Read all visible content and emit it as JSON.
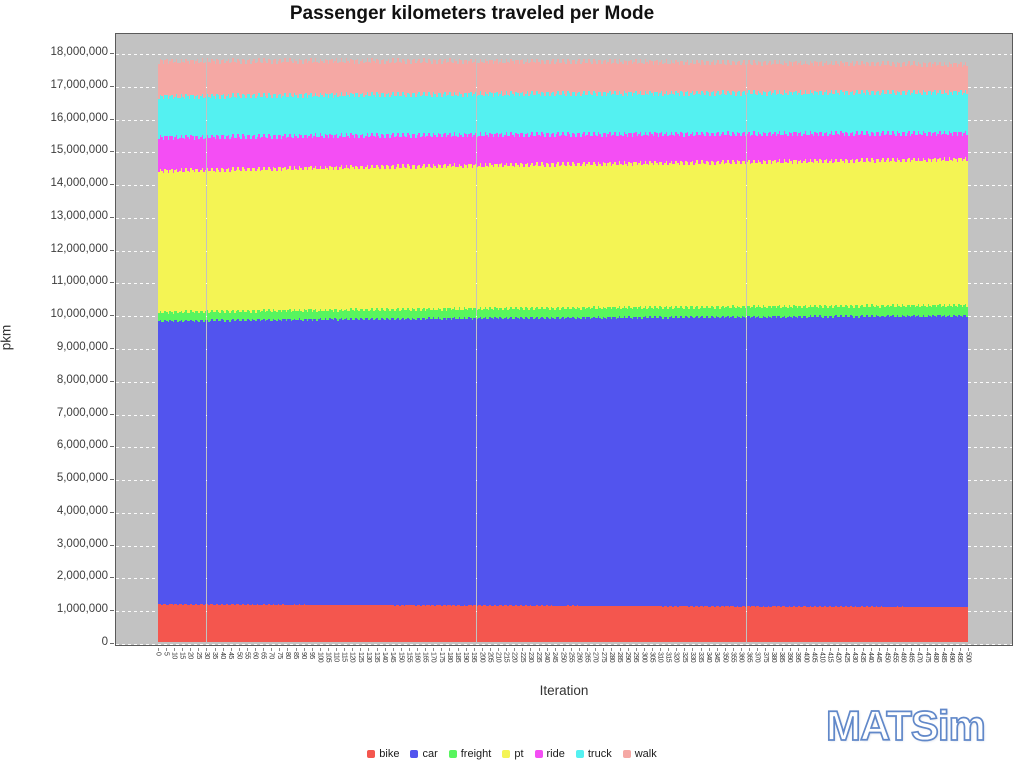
{
  "title": "Passenger kilometers traveled per Mode",
  "axes": {
    "ylabel": "pkm",
    "xlabel": "Iteration"
  },
  "watermark": "MATSim",
  "colors": {
    "plot_bg": "#c2c2c2",
    "plot_border": "#5a5a5a",
    "grid": "#ffffff",
    "tick_text": "#3d3d3d",
    "logo_stroke": "#6188c9"
  },
  "chart_data": {
    "type": "bar",
    "stacked": true,
    "title": "Passenger kilometers traveled per Mode",
    "xlabel": "Iteration",
    "ylabel": "pkm",
    "x_axis": {
      "start": 0,
      "end": 500,
      "bar_step": 1,
      "tick_label_step": 5
    },
    "y_axis": {
      "min": 0,
      "max": 18000000,
      "tick_step": 1000000,
      "plotted_top": 18600000
    },
    "grid": true,
    "legend_position": "bottom",
    "sample_iterations": [
      0,
      50,
      100,
      150,
      200,
      250,
      300,
      350,
      400,
      450,
      500
    ],
    "series": [
      {
        "name": "bike",
        "color": "#f4564e",
        "samples": [
          1150000,
          1141000,
          1133000,
          1124000,
          1116000,
          1104000,
          1096000,
          1087000,
          1080000,
          1074000,
          1068000
        ]
      },
      {
        "name": "car",
        "color": "#5254ee",
        "samples": [
          8640000,
          8676000,
          8708000,
          8736000,
          8762000,
          8786000,
          8806000,
          8826000,
          8846000,
          8864000,
          8880000
        ]
      },
      {
        "name": "freight",
        "color": "#58f55e",
        "samples": [
          270000,
          276000,
          281000,
          286000,
          291000,
          296000,
          301000,
          306000,
          311000,
          316000,
          320000
        ]
      },
      {
        "name": "pt",
        "color": "#f4f454",
        "samples": [
          4310000,
          4328000,
          4344000,
          4360000,
          4374000,
          4388000,
          4402000,
          4416000,
          4432000,
          4446000,
          4460000
        ]
      },
      {
        "name": "ride",
        "color": "#f44ef4",
        "samples": [
          1020000,
          998000,
          976000,
          954000,
          932000,
          912000,
          890000,
          866000,
          840000,
          814000,
          790000
        ]
      },
      {
        "name": "truck",
        "color": "#54f1f1",
        "samples": [
          1240000,
          1241000,
          1242000,
          1243000,
          1244000,
          1245000,
          1246000,
          1247000,
          1248000,
          1249000,
          1250000
        ]
      },
      {
        "name": "walk",
        "color": "#f5a8a4",
        "samples": [
          1090000,
          1066000,
          1044000,
          1022000,
          1000000,
          978000,
          956000,
          930000,
          902000,
          876000,
          850000
        ]
      }
    ]
  }
}
